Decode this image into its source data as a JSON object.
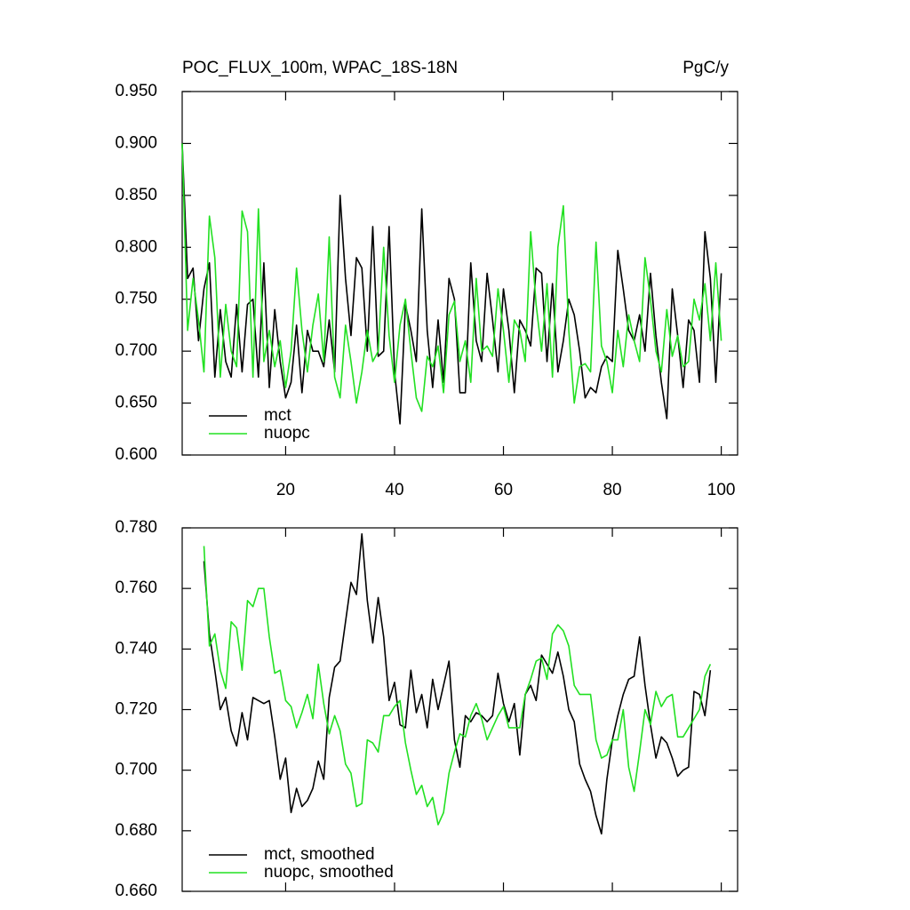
{
  "chart_data": [
    {
      "type": "line",
      "title": "POC_FLUX_100m, WPAC_18S-18N",
      "right_title": "PgC/y",
      "x": [
        1,
        2,
        3,
        4,
        5,
        6,
        7,
        8,
        9,
        10,
        11,
        12,
        13,
        14,
        15,
        16,
        17,
        18,
        19,
        20,
        21,
        22,
        23,
        24,
        25,
        26,
        27,
        28,
        29,
        30,
        31,
        32,
        33,
        34,
        35,
        36,
        37,
        38,
        39,
        40,
        41,
        42,
        43,
        44,
        45,
        46,
        47,
        48,
        49,
        50,
        51,
        52,
        53,
        54,
        55,
        56,
        57,
        58,
        59,
        60,
        61,
        62,
        63,
        64,
        65,
        66,
        67,
        68,
        69,
        70,
        71,
        72,
        73,
        74,
        75,
        76,
        77,
        78,
        79,
        80,
        81,
        82,
        83,
        84,
        85,
        86,
        87,
        88,
        89,
        90,
        91,
        92,
        93,
        94,
        95,
        96,
        97,
        98,
        99,
        100
      ],
      "series": [
        {
          "name": "mct",
          "color": "#000000",
          "values": [
            0.9,
            0.77,
            0.78,
            0.71,
            0.76,
            0.785,
            0.675,
            0.74,
            0.69,
            0.675,
            0.745,
            0.68,
            0.745,
            0.75,
            0.675,
            0.785,
            0.665,
            0.74,
            0.69,
            0.655,
            0.67,
            0.725,
            0.66,
            0.72,
            0.7,
            0.7,
            0.685,
            0.73,
            0.68,
            0.85,
            0.77,
            0.715,
            0.79,
            0.78,
            0.7,
            0.82,
            0.695,
            0.7,
            0.82,
            0.68,
            0.63,
            0.745,
            0.72,
            0.69,
            0.837,
            0.72,
            0.665,
            0.73,
            0.67,
            0.77,
            0.75,
            0.66,
            0.66,
            0.785,
            0.71,
            0.69,
            0.775,
            0.73,
            0.68,
            0.76,
            0.72,
            0.66,
            0.73,
            0.72,
            0.705,
            0.78,
            0.775,
            0.69,
            0.765,
            0.68,
            0.71,
            0.75,
            0.735,
            0.7,
            0.655,
            0.665,
            0.66,
            0.685,
            0.695,
            0.69,
            0.797,
            0.76,
            0.72,
            0.71,
            0.735,
            0.7,
            0.775,
            0.715,
            0.67,
            0.635,
            0.76,
            0.715,
            0.665,
            0.73,
            0.72,
            0.67,
            0.815,
            0.77,
            0.67,
            0.775
          ]
        },
        {
          "name": "nuopc",
          "color": "#22e022",
          "values": [
            0.9,
            0.72,
            0.77,
            0.73,
            0.68,
            0.83,
            0.79,
            0.675,
            0.745,
            0.7,
            0.685,
            0.835,
            0.815,
            0.675,
            0.837,
            0.69,
            0.72,
            0.685,
            0.71,
            0.665,
            0.7,
            0.78,
            0.72,
            0.68,
            0.725,
            0.755,
            0.69,
            0.81,
            0.675,
            0.655,
            0.725,
            0.69,
            0.65,
            0.68,
            0.72,
            0.69,
            0.7,
            0.8,
            0.715,
            0.67,
            0.725,
            0.75,
            0.7,
            0.655,
            0.642,
            0.695,
            0.685,
            0.705,
            0.66,
            0.735,
            0.748,
            0.69,
            0.71,
            0.67,
            0.77,
            0.7,
            0.705,
            0.695,
            0.76,
            0.72,
            0.67,
            0.73,
            0.72,
            0.69,
            0.815,
            0.745,
            0.7,
            0.765,
            0.675,
            0.8,
            0.84,
            0.72,
            0.65,
            0.685,
            0.688,
            0.68,
            0.805,
            0.705,
            0.69,
            0.66,
            0.72,
            0.685,
            0.735,
            0.71,
            0.69,
            0.79,
            0.75,
            0.7,
            0.68,
            0.74,
            0.695,
            0.715,
            0.685,
            0.69,
            0.75,
            0.73,
            0.765,
            0.71,
            0.785,
            0.71
          ]
        }
      ],
      "xlim": [
        1,
        103
      ],
      "xticks": [
        20,
        40,
        60,
        80,
        100
      ],
      "ylim": [
        0.6,
        0.95
      ],
      "yticks": [
        {
          "value": 0.6,
          "label": "0.600"
        },
        {
          "value": 0.65,
          "label": "0.650"
        },
        {
          "value": 0.7,
          "label": "0.700"
        },
        {
          "value": 0.75,
          "label": "0.750"
        },
        {
          "value": 0.8,
          "label": "0.800"
        },
        {
          "value": 0.85,
          "label": "0.850"
        },
        {
          "value": 0.9,
          "label": "0.900"
        },
        {
          "value": 0.95,
          "label": "0.950"
        }
      ]
    },
    {
      "type": "line",
      "x": [
        5,
        6,
        7,
        8,
        9,
        10,
        11,
        12,
        13,
        14,
        15,
        16,
        17,
        18,
        19,
        20,
        21,
        22,
        23,
        24,
        25,
        26,
        27,
        28,
        29,
        30,
        31,
        32,
        33,
        34,
        35,
        36,
        37,
        38,
        39,
        40,
        41,
        42,
        43,
        44,
        45,
        46,
        47,
        48,
        49,
        50,
        51,
        52,
        53,
        54,
        55,
        56,
        57,
        58,
        59,
        60,
        61,
        62,
        63,
        64,
        65,
        66,
        67,
        68,
        69,
        70,
        71,
        72,
        73,
        74,
        75,
        76,
        77,
        78,
        79,
        80,
        81,
        82,
        83,
        84,
        85,
        86,
        87,
        88,
        89,
        90,
        91,
        92,
        93,
        94,
        95,
        96,
        97,
        98
      ],
      "series": [
        {
          "name": "mct, smoothed",
          "color": "#000000",
          "values": [
            0.769,
            0.745,
            0.733,
            0.72,
            0.724,
            0.713,
            0.708,
            0.719,
            0.71,
            0.724,
            0.723,
            0.722,
            0.723,
            0.711,
            0.697,
            0.704,
            0.686,
            0.694,
            0.688,
            0.69,
            0.694,
            0.703,
            0.697,
            0.724,
            0.734,
            0.736,
            0.749,
            0.762,
            0.758,
            0.778,
            0.756,
            0.742,
            0.757,
            0.744,
            0.723,
            0.729,
            0.715,
            0.714,
            0.733,
            0.719,
            0.725,
            0.714,
            0.73,
            0.72,
            0.728,
            0.736,
            0.71,
            0.701,
            0.718,
            0.716,
            0.719,
            0.718,
            0.716,
            0.718,
            0.732,
            0.722,
            0.716,
            0.722,
            0.705,
            0.725,
            0.728,
            0.723,
            0.738,
            0.735,
            0.732,
            0.739,
            0.731,
            0.72,
            0.716,
            0.702,
            0.697,
            0.693,
            0.685,
            0.679,
            0.697,
            0.71,
            0.718,
            0.725,
            0.73,
            0.731,
            0.744,
            0.728,
            0.715,
            0.704,
            0.711,
            0.709,
            0.704,
            0.698,
            0.7,
            0.701,
            0.726,
            0.725,
            0.718,
            0.733
          ]
        },
        {
          "name": "nuopc, smoothed",
          "color": "#22e022",
          "values": [
            0.774,
            0.741,
            0.745,
            0.733,
            0.727,
            0.749,
            0.747,
            0.733,
            0.756,
            0.754,
            0.76,
            0.76,
            0.744,
            0.732,
            0.733,
            0.723,
            0.721,
            0.714,
            0.719,
            0.725,
            0.717,
            0.735,
            0.722,
            0.712,
            0.718,
            0.713,
            0.702,
            0.699,
            0.688,
            0.689,
            0.71,
            0.709,
            0.706,
            0.718,
            0.718,
            0.721,
            0.723,
            0.709,
            0.7,
            0.692,
            0.695,
            0.688,
            0.691,
            0.682,
            0.686,
            0.699,
            0.706,
            0.712,
            0.711,
            0.718,
            0.722,
            0.717,
            0.71,
            0.714,
            0.718,
            0.721,
            0.714,
            0.714,
            0.714,
            0.725,
            0.73,
            0.736,
            0.737,
            0.73,
            0.745,
            0.748,
            0.746,
            0.741,
            0.728,
            0.725,
            0.725,
            0.725,
            0.71,
            0.704,
            0.705,
            0.71,
            0.71,
            0.72,
            0.701,
            0.693,
            0.706,
            0.72,
            0.715,
            0.726,
            0.721,
            0.724,
            0.725,
            0.711,
            0.711,
            0.714,
            0.717,
            0.72,
            0.731,
            0.735
          ]
        }
      ],
      "xlim": [
        1,
        103
      ],
      "xticks": [
        20,
        40,
        60,
        80,
        100
      ],
      "ylim": [
        0.66,
        0.78
      ],
      "yticks": [
        {
          "value": 0.66,
          "label": "0.660"
        },
        {
          "value": 0.68,
          "label": "0.680"
        },
        {
          "value": 0.7,
          "label": "0.700"
        },
        {
          "value": 0.72,
          "label": "0.720"
        },
        {
          "value": 0.74,
          "label": "0.740"
        },
        {
          "value": 0.76,
          "label": "0.760"
        },
        {
          "value": 0.78,
          "label": "0.780"
        }
      ]
    }
  ]
}
